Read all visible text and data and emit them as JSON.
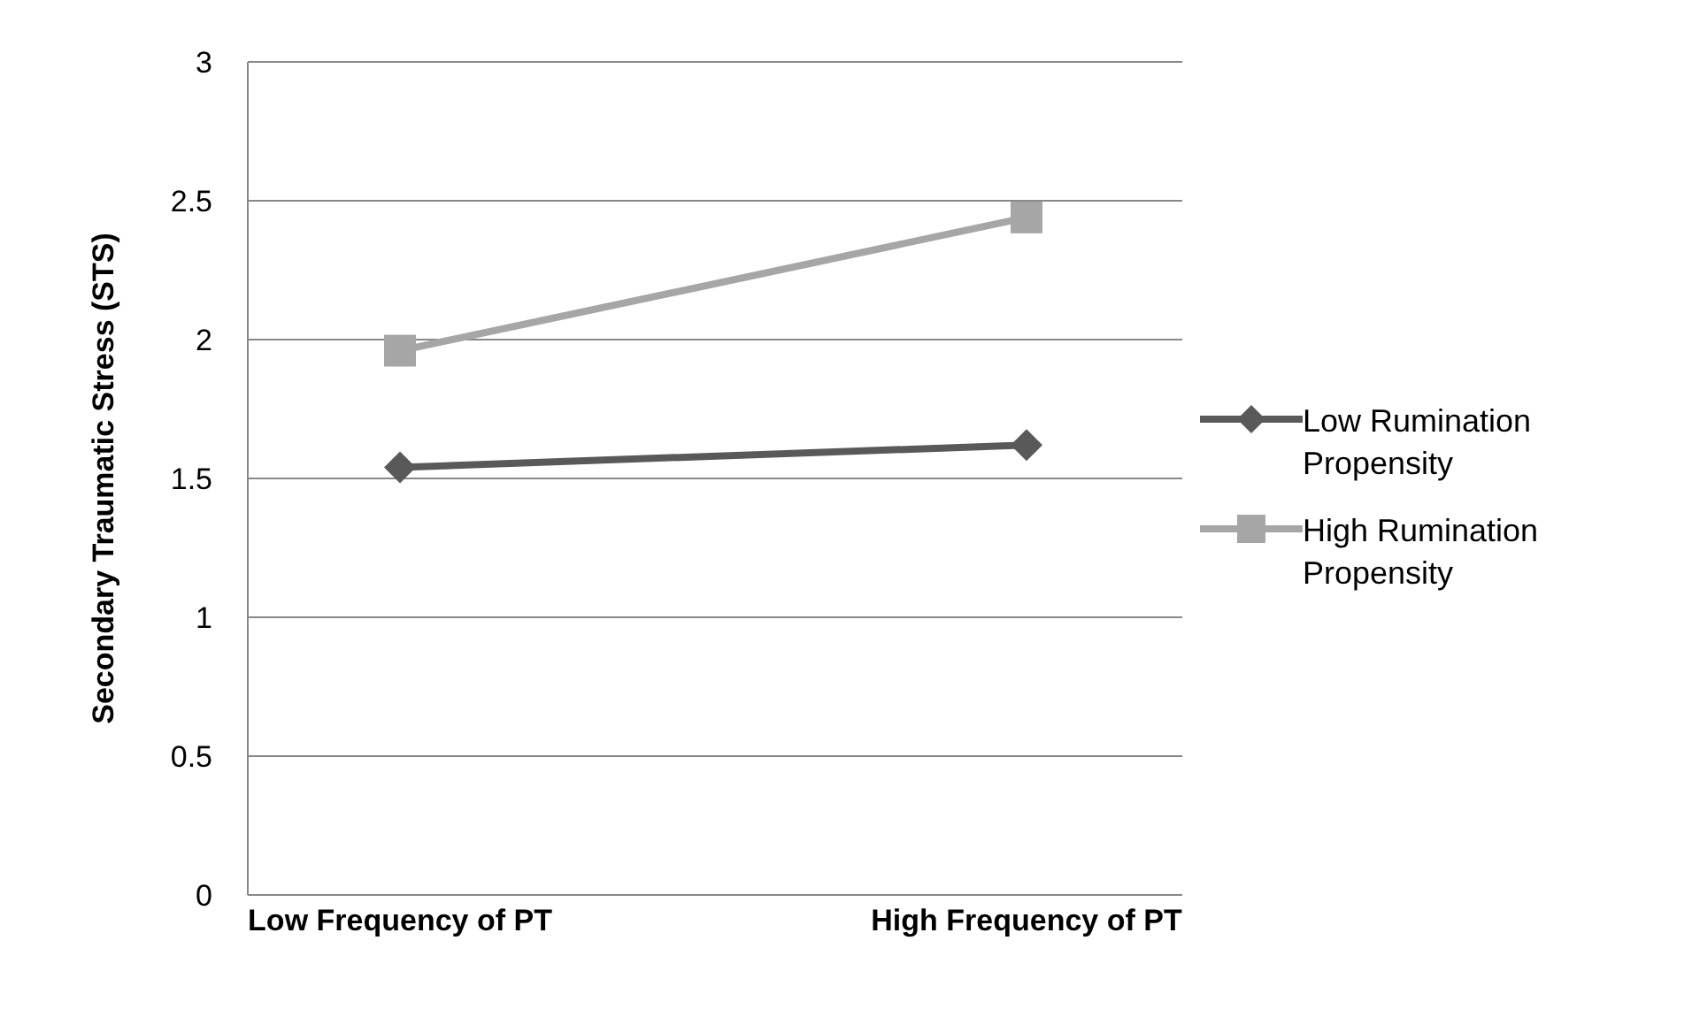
{
  "chart_data": {
    "type": "line",
    "ylabel": "Secondary Traumatic Stress (STS)",
    "categories": [
      "Low Frequency of PT",
      "High Frequency of PT"
    ],
    "series": [
      {
        "name": "Low Rumination Propensity",
        "color": "#595959",
        "marker": "diamond",
        "values": [
          1.54,
          1.62
        ]
      },
      {
        "name": "High Rumination Propensity",
        "color": "#a6a6a6",
        "marker": "square",
        "values": [
          1.96,
          2.44
        ]
      }
    ],
    "ylim": [
      0,
      3
    ],
    "yticks": [
      0,
      0.5,
      1,
      1.5,
      2,
      2.5,
      3
    ],
    "grid": "y",
    "legend": "right"
  }
}
